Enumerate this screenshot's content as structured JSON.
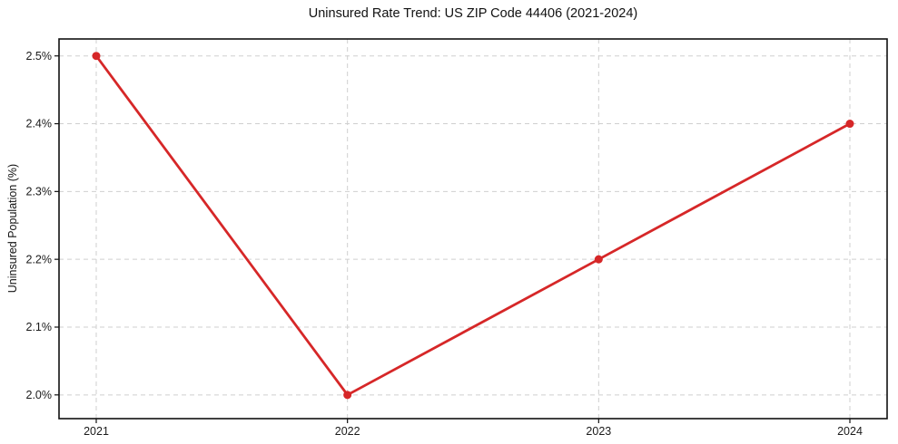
{
  "chart_data": {
    "type": "line",
    "title": "Uninsured Rate Trend: US ZIP Code 44406 (2021-2024)",
    "xlabel": "",
    "ylabel": "Uninsured Population (%)",
    "categories": [
      "2021",
      "2022",
      "2023",
      "2024"
    ],
    "values": [
      2.5,
      2.0,
      2.2,
      2.4
    ],
    "ytick_labels": [
      "2.0%",
      "2.1%",
      "2.2%",
      "2.3%",
      "2.4%",
      "2.5%"
    ],
    "ytick_values": [
      2.0,
      2.1,
      2.2,
      2.3,
      2.4,
      2.5
    ],
    "ylim": [
      1.965,
      2.525
    ],
    "grid": true,
    "grid_style": "dashed",
    "grid_color": "#cfcfcf",
    "legend_position": "none",
    "line_color": "#d62728",
    "marker": "circle",
    "spine_color": "#111111",
    "background": "#ffffff"
  }
}
